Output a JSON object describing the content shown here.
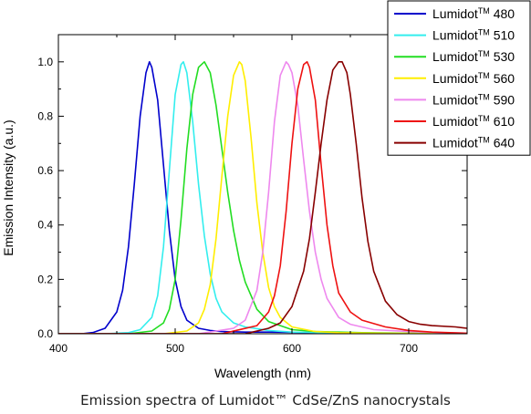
{
  "chart_data": {
    "type": "line",
    "title": "",
    "xlabel": "Wavelength (nm)",
    "ylabel": "Emission Intensity (a.u.)",
    "xlim": [
      400,
      750
    ],
    "ylim": [
      0,
      1.1
    ],
    "x_ticks": [
      "400",
      "500",
      "600",
      "700"
    ],
    "y_ticks": [
      "0.0",
      "0.2",
      "0.4",
      "0.6",
      "0.8",
      "1.0"
    ],
    "legend_position": "top-right",
    "legend_superscript": "TM",
    "grid": false,
    "series": [
      {
        "name": "Lumidot",
        "number": "480",
        "color": "#0000cc",
        "x": [
          400,
          420,
          430,
          440,
          450,
          455,
          460,
          465,
          470,
          475,
          478,
          480,
          485,
          490,
          495,
          500,
          505,
          510,
          520,
          530,
          540,
          560,
          580,
          600,
          620,
          640,
          660,
          680,
          700,
          720,
          740,
          750
        ],
        "y": [
          0.0,
          0.0,
          0.005,
          0.02,
          0.08,
          0.16,
          0.32,
          0.55,
          0.8,
          0.96,
          1.0,
          0.98,
          0.86,
          0.62,
          0.38,
          0.2,
          0.1,
          0.05,
          0.02,
          0.012,
          0.008,
          0.006,
          0.006,
          0.005,
          0.004,
          0.003,
          0.002,
          0.002,
          0.001,
          0.001,
          0.0,
          0.0
        ]
      },
      {
        "name": "Lumidot",
        "number": "510",
        "color": "#33eeee",
        "x": [
          400,
          440,
          460,
          470,
          480,
          485,
          490,
          495,
          500,
          505,
          507,
          510,
          515,
          520,
          525,
          530,
          535,
          540,
          550,
          560,
          580,
          600,
          640,
          700,
          750
        ],
        "y": [
          0.0,
          0.0,
          0.004,
          0.015,
          0.06,
          0.14,
          0.32,
          0.6,
          0.88,
          0.99,
          1.0,
          0.96,
          0.78,
          0.55,
          0.36,
          0.22,
          0.13,
          0.08,
          0.04,
          0.025,
          0.012,
          0.006,
          0.003,
          0.001,
          0.0
        ]
      },
      {
        "name": "Lumidot",
        "number": "530",
        "color": "#22dd22",
        "x": [
          400,
          460,
          480,
          490,
          495,
          500,
          505,
          510,
          515,
          520,
          525,
          530,
          535,
          540,
          545,
          550,
          555,
          560,
          570,
          580,
          600,
          620,
          660,
          700,
          750
        ],
        "y": [
          0.0,
          0.0,
          0.01,
          0.04,
          0.09,
          0.2,
          0.42,
          0.68,
          0.88,
          0.98,
          1.0,
          0.96,
          0.84,
          0.68,
          0.52,
          0.38,
          0.27,
          0.19,
          0.09,
          0.045,
          0.015,
          0.008,
          0.004,
          0.002,
          0.0
        ]
      },
      {
        "name": "Lumidot",
        "number": "560",
        "color": "#ffee00",
        "x": [
          400,
          490,
          510,
          520,
          525,
          530,
          535,
          540,
          545,
          550,
          555,
          557,
          560,
          565,
          570,
          575,
          580,
          585,
          590,
          600,
          620,
          640,
          680,
          720,
          750
        ],
        "y": [
          0.0,
          0.0,
          0.01,
          0.04,
          0.09,
          0.18,
          0.35,
          0.58,
          0.8,
          0.95,
          1.0,
          0.99,
          0.93,
          0.72,
          0.48,
          0.3,
          0.17,
          0.1,
          0.06,
          0.025,
          0.008,
          0.004,
          0.002,
          0.001,
          0.0
        ]
      },
      {
        "name": "Lumidot",
        "number": "590",
        "color": "#ee88ee",
        "x": [
          400,
          520,
          550,
          560,
          570,
          575,
          580,
          585,
          590,
          595,
          597,
          600,
          605,
          610,
          615,
          620,
          625,
          630,
          640,
          650,
          670,
          700,
          730,
          750
        ],
        "y": [
          0.0,
          0.0,
          0.02,
          0.05,
          0.16,
          0.3,
          0.52,
          0.78,
          0.95,
          1.0,
          0.99,
          0.96,
          0.84,
          0.64,
          0.45,
          0.3,
          0.2,
          0.13,
          0.06,
          0.035,
          0.015,
          0.008,
          0.004,
          0.002
        ]
      },
      {
        "name": "Lumidot",
        "number": "610",
        "color": "#ee1111",
        "x": [
          400,
          540,
          570,
          580,
          585,
          590,
          595,
          600,
          605,
          610,
          613,
          615,
          620,
          625,
          630,
          635,
          640,
          650,
          660,
          680,
          700,
          720,
          750
        ],
        "y": [
          0.0,
          0.0,
          0.03,
          0.08,
          0.14,
          0.25,
          0.45,
          0.7,
          0.9,
          0.99,
          1.0,
          0.98,
          0.86,
          0.62,
          0.4,
          0.25,
          0.15,
          0.08,
          0.05,
          0.025,
          0.012,
          0.006,
          0.002
        ]
      },
      {
        "name": "Lumidot",
        "number": "640",
        "color": "#880000",
        "x": [
          400,
          560,
          580,
          590,
          600,
          610,
          615,
          620,
          625,
          630,
          635,
          640,
          643,
          647,
          650,
          655,
          660,
          665,
          670,
          680,
          690,
          700,
          710,
          720,
          740,
          750
        ],
        "y": [
          0.0,
          0.0,
          0.02,
          0.04,
          0.1,
          0.23,
          0.35,
          0.52,
          0.7,
          0.86,
          0.97,
          1.0,
          1.0,
          0.96,
          0.88,
          0.7,
          0.5,
          0.34,
          0.23,
          0.12,
          0.07,
          0.045,
          0.035,
          0.03,
          0.025,
          0.02
        ]
      }
    ]
  },
  "caption": "Emission spectra of Lumidot™ CdSe/ZnS nanocrystals"
}
